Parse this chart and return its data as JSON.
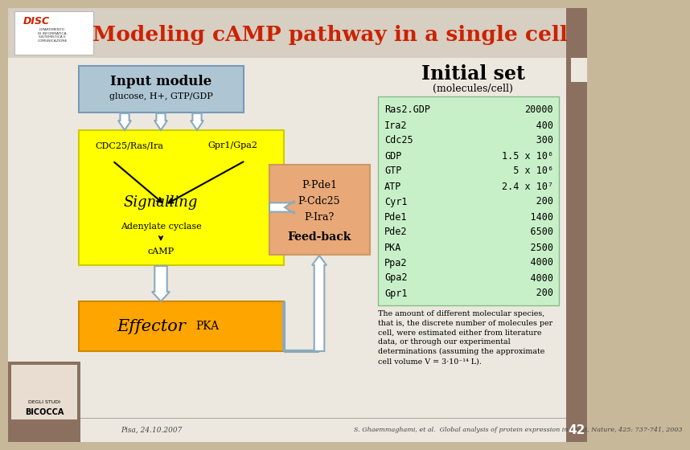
{
  "title": "Modeling cAMP pathway in a single cell",
  "title_color": "#cc2200",
  "bg_color": "#c8b89a",
  "slide_bg": "#ede8df",
  "header_bg": "#d6cfc2",
  "input_box_color": "#aec6d4",
  "signalling_box_color": "#ffff00",
  "feedback_box_color": "#e8a878",
  "effector_box_color": "#ffa500",
  "initial_set_bg": "#c8f0c8",
  "arrow_color": "#8aaabb",
  "logo_brown": "#8b7060",
  "molecules": [
    [
      "Ras2.GDP",
      "20000"
    ],
    [
      "Ira2",
      "     400"
    ],
    [
      "Cdc25",
      "     300"
    ],
    [
      "GDP",
      "1.5 x 10⁶"
    ],
    [
      "GTP",
      "  5 x 10⁶"
    ],
    [
      "ATP",
      "2.4 x 10⁷"
    ],
    [
      "Cyr1",
      "     200"
    ],
    [
      "Pde1",
      "    1400"
    ],
    [
      "Pde2",
      "    6500"
    ],
    [
      "PKA",
      "    2500"
    ],
    [
      "Ppa2",
      "    4000"
    ],
    [
      "Gpa2",
      "    4000"
    ],
    [
      "Gpr1",
      "     200"
    ]
  ],
  "footer_left": "Pisa, 24.10.2007",
  "footer_right": "S. Ghaemmaghami, et al.  Global analysis of protein expression in yeast, Nature, 425: 737-741, 2003",
  "page_num": "42",
  "note_text": "The amount of different molecular species,\nthat is, the discrete number of molecules per\ncell, were estimated either from literature\ndata, or through our experimental\ndeterminations (assuming the approximate\ncell volume V = 3·10⁻¹⁴ L)."
}
